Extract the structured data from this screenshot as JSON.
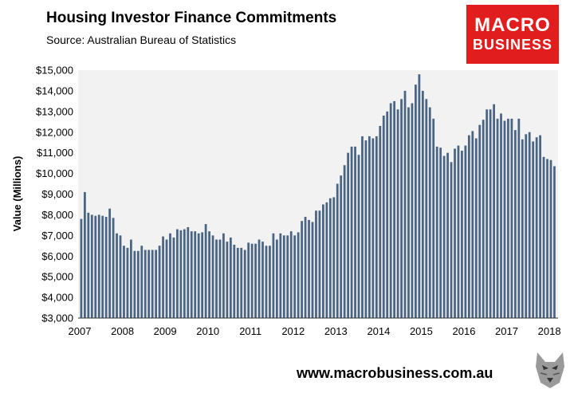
{
  "header": {
    "title": "Housing Investor Finance Commitments",
    "subtitle": "Source: Australian Bureau of Statistics"
  },
  "logo": {
    "line1": "MACRO",
    "line2": "BUSINESS",
    "color": "#e21d1d",
    "icon": "wolf-icon"
  },
  "footer": {
    "url": "www.macrobusiness.com.au"
  },
  "chart_data": {
    "type": "bar",
    "title": "Housing Investor Finance Commitments",
    "subtitle": "Source: Australian Bureau of Statistics",
    "xlabel": "",
    "ylabel": "Value (Millions)",
    "ylim": [
      3000,
      15000
    ],
    "yticks": [
      "$3,000",
      "$4,000",
      "$5,000",
      "$6,000",
      "$7,000",
      "$8,000",
      "$9,000",
      "$10,000",
      "$11,000",
      "$12,000",
      "$13,000",
      "$14,000",
      "$15,000"
    ],
    "xticks": [
      "2007",
      "2008",
      "2009",
      "2010",
      "2011",
      "2012",
      "2013",
      "2014",
      "2015",
      "2016",
      "2017",
      "2018"
    ],
    "grid": false,
    "bar_color": "#4a6484",
    "plot_background": "#f2f2f2",
    "x_start": "2007-01",
    "values": [
      7800,
      9100,
      8100,
      8000,
      7950,
      8000,
      7950,
      7900,
      8300,
      7850,
      7100,
      7000,
      6500,
      6400,
      6800,
      6250,
      6250,
      6500,
      6300,
      6300,
      6300,
      6300,
      6500,
      6950,
      6800,
      7100,
      6900,
      7300,
      7250,
      7300,
      7400,
      7200,
      7200,
      7100,
      7150,
      7550,
      7200,
      7000,
      6800,
      6800,
      7100,
      6700,
      6900,
      6550,
      6400,
      6400,
      6300,
      6650,
      6600,
      6600,
      6800,
      6700,
      6500,
      6500,
      7100,
      6800,
      7100,
      7000,
      7000,
      7200,
      7000,
      7150,
      7700,
      7900,
      7750,
      7650,
      8200,
      8200,
      8500,
      8600,
      8800,
      8850,
      9500,
      9900,
      10400,
      11000,
      11300,
      11300,
      10900,
      11800,
      11600,
      11800,
      11700,
      11800,
      12300,
      12800,
      13000,
      13400,
      13500,
      13100,
      13600,
      14000,
      13200,
      13400,
      14300,
      14800,
      14000,
      13600,
      13200,
      12650,
      11300,
      11250,
      10850,
      11000,
      10550,
      11200,
      11350,
      11100,
      11350,
      11850,
      12050,
      11700,
      12350,
      12600,
      13100,
      13100,
      13350,
      12650,
      12900,
      12550,
      12650,
      12650,
      12100,
      12650,
      11650,
      11900,
      12000,
      11550,
      11750,
      11850,
      10800,
      10700,
      10650,
      10350
    ]
  }
}
